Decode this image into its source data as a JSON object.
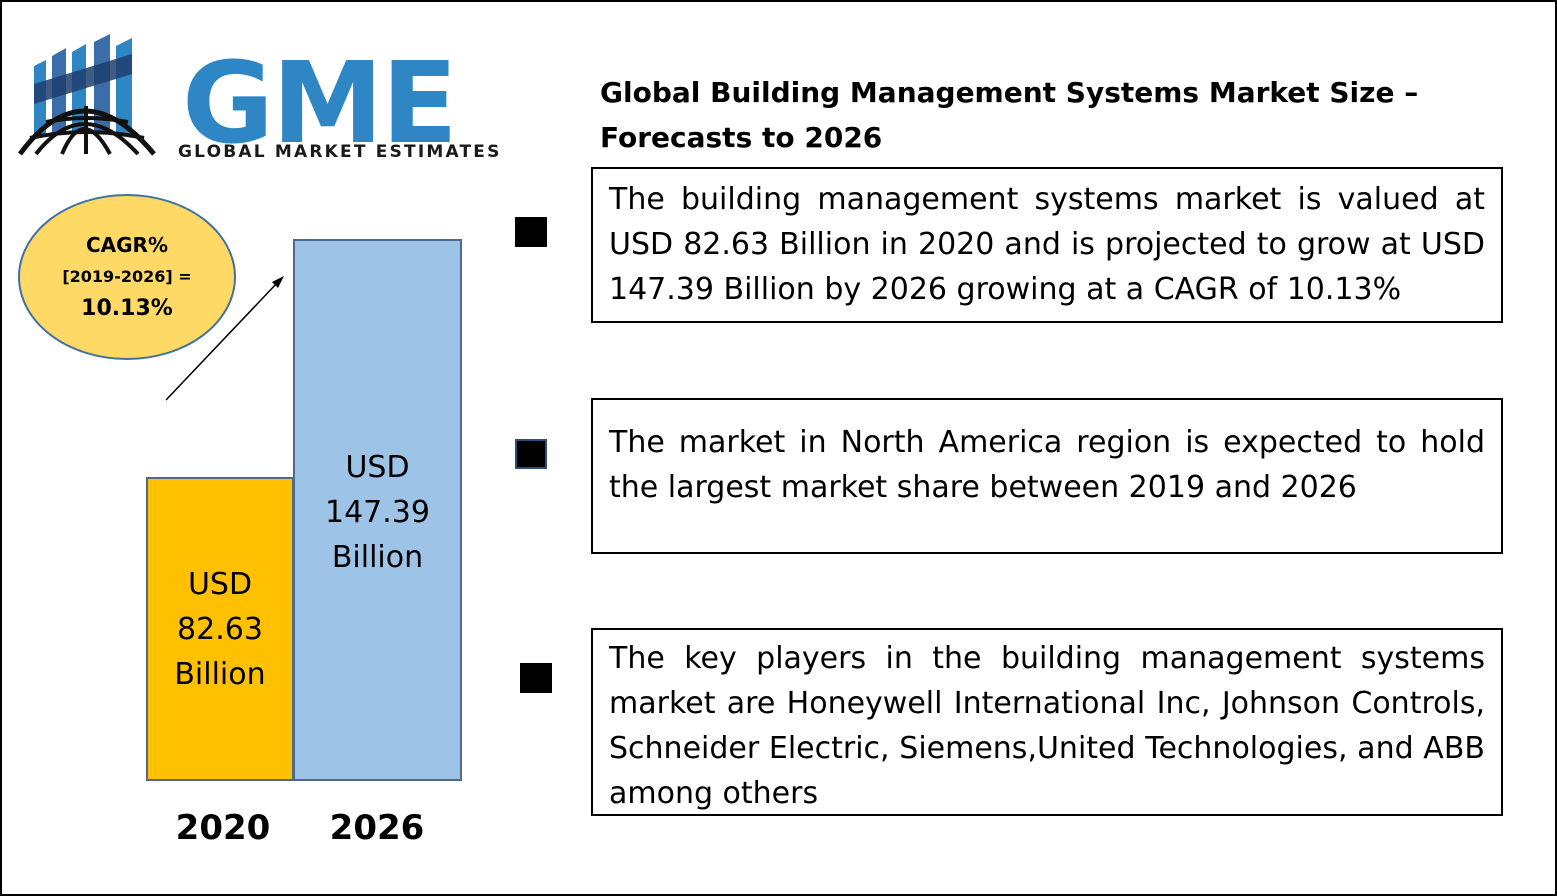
{
  "logo": {
    "text": "GME",
    "subtitle": "GLOBAL MARKET ESTIMATES",
    "brand_color": "#2f86c4"
  },
  "title": "Global Building Management Systems Market Size – Forecasts to 2026",
  "cagr": {
    "label": "CAGR%",
    "period": "[2019-2026] =",
    "value": "10.13%",
    "fill_color": "#ffd966"
  },
  "chart_data": {
    "type": "bar",
    "categories": [
      "2020",
      "2026"
    ],
    "values": [
      82.63,
      147.39
    ],
    "data_labels": [
      [
        "USD",
        "82.63",
        "Billion"
      ],
      [
        "USD",
        "147.39",
        "Billion"
      ]
    ],
    "colors": [
      "#ffc000",
      "#9dc3e6"
    ],
    "ylim": [
      0,
      147.39
    ],
    "grid": false,
    "legend": "none"
  },
  "bullets": [
    "The building management systems market is valued at USD 82.63 Billion in 2020 and is projected to grow at USD 147.39 Billion by 2026 growing at a CAGR of 10.13%",
    "The market in North America region is expected to hold the largest market share between 2019 and 2026",
    "The key players in the building management systems market are Honeywell International Inc, Johnson Controls, Schneider Electric, Siemens,United Technologies, and ABB among others"
  ]
}
